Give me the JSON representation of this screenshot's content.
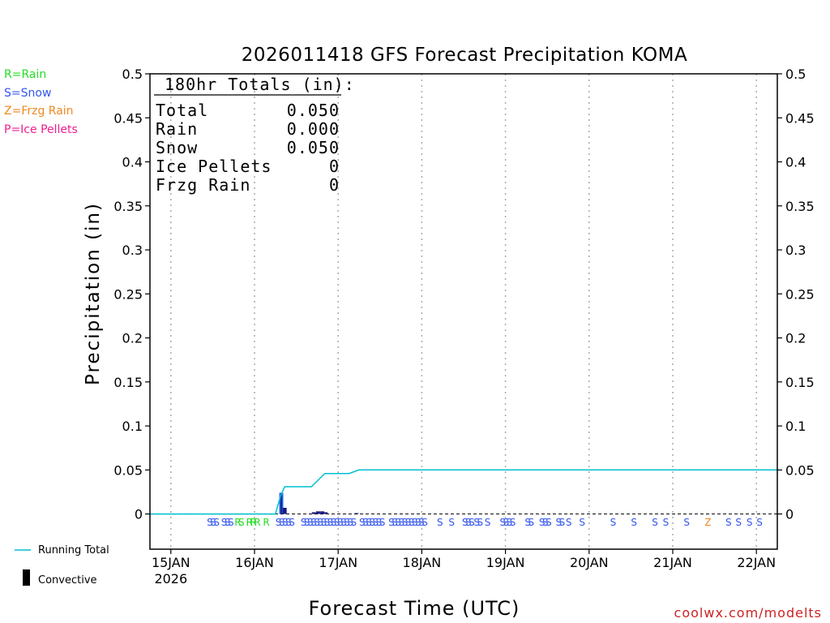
{
  "chart_data": {
    "type": "bar",
    "title": "2026011418 GFS Forecast Precipitation KOMA",
    "xlabel": "Forecast Time (UTC)",
    "ylabel": "Precipitation (in)",
    "ylim": [
      -0.04,
      0.5
    ],
    "y_ticks": [
      "0",
      "0.05",
      "0.1",
      "0.15",
      "0.2",
      "0.25",
      "0.3",
      "0.35",
      "0.4",
      "0.45",
      "0.5"
    ],
    "y_tick_values": [
      0,
      0.05,
      0.1,
      0.15,
      0.2,
      0.25,
      0.3,
      0.35,
      0.4,
      0.45,
      0.5
    ],
    "x_range_days": [
      -0.25,
      7.25
    ],
    "x_ticks": [
      {
        "day": 0,
        "label": "15JAN",
        "sub": "2026"
      },
      {
        "day": 1,
        "label": "16JAN",
        "sub": ""
      },
      {
        "day": 2,
        "label": "17JAN",
        "sub": ""
      },
      {
        "day": 3,
        "label": "18JAN",
        "sub": ""
      },
      {
        "day": 4,
        "label": "19JAN",
        "sub": ""
      },
      {
        "day": 5,
        "label": "20JAN",
        "sub": ""
      },
      {
        "day": 6,
        "label": "21JAN",
        "sub": ""
      },
      {
        "day": 7,
        "label": "22JAN",
        "sub": ""
      }
    ],
    "precip_bars": [
      {
        "day": 1.32,
        "value": 0.024,
        "kind": "snow"
      },
      {
        "day": 1.36,
        "value": 0.007,
        "kind": "snow"
      },
      {
        "day": 1.71,
        "value": 0.002,
        "kind": "snow"
      },
      {
        "day": 1.76,
        "value": 0.003,
        "kind": "snow"
      },
      {
        "day": 1.81,
        "value": 0.003,
        "kind": "snow"
      },
      {
        "day": 1.85,
        "value": 0.002,
        "kind": "snow"
      },
      {
        "day": 2.22,
        "value": 0.001,
        "kind": "snow"
      }
    ],
    "series": [
      {
        "name": "Running Total",
        "color": "#00c0d0",
        "x": [
          -0.25,
          1.25,
          1.31,
          1.36,
          1.68,
          1.84,
          2.13,
          2.25,
          7.25
        ],
        "y": [
          0,
          0,
          0.02,
          0.031,
          0.031,
          0.046,
          0.046,
          0.05,
          0.05
        ]
      }
    ],
    "ptype_markers": [
      {
        "day": 0.43,
        "text": "SSS",
        "kind": "snow"
      },
      {
        "day": 0.6,
        "text": "SSS",
        "kind": "snow"
      },
      {
        "day": 0.76,
        "text": "RS",
        "kind": "rain"
      },
      {
        "day": 0.9,
        "text": "RRR",
        "kind": "rain"
      },
      {
        "day": 1.1,
        "text": "R",
        "kind": "rain"
      },
      {
        "day": 1.25,
        "text": "SSSSS",
        "kind": "snow"
      },
      {
        "day": 1.55,
        "text": "SSSSSSSSSSSSSSSS",
        "kind": "snow"
      },
      {
        "day": 2.25,
        "text": "SSSSSSS",
        "kind": "snow"
      },
      {
        "day": 2.6,
        "text": "SSSSSSSSSSS",
        "kind": "snow"
      },
      {
        "day": 3.18,
        "text": "S",
        "kind": "snow"
      },
      {
        "day": 3.32,
        "text": "S",
        "kind": "snow"
      },
      {
        "day": 3.48,
        "text": "SSS",
        "kind": "snow"
      },
      {
        "day": 3.62,
        "text": "SS",
        "kind": "snow"
      },
      {
        "day": 3.75,
        "text": "S",
        "kind": "snow"
      },
      {
        "day": 3.93,
        "text": "SSSS",
        "kind": "snow"
      },
      {
        "day": 4.23,
        "text": "SS",
        "kind": "snow"
      },
      {
        "day": 4.4,
        "text": "SSS",
        "kind": "snow"
      },
      {
        "day": 4.6,
        "text": "SS",
        "kind": "snow"
      },
      {
        "day": 4.72,
        "text": "S",
        "kind": "snow"
      },
      {
        "day": 4.88,
        "text": "S",
        "kind": "snow"
      },
      {
        "day": 5.25,
        "text": "S",
        "kind": "snow"
      },
      {
        "day": 5.5,
        "text": "S",
        "kind": "snow"
      },
      {
        "day": 5.75,
        "text": "S",
        "kind": "snow"
      },
      {
        "day": 5.88,
        "text": "S",
        "kind": "snow"
      },
      {
        "day": 6.13,
        "text": "S",
        "kind": "snow"
      },
      {
        "day": 6.38,
        "text": "Z",
        "kind": "frzg"
      },
      {
        "day": 6.63,
        "text": "S",
        "kind": "snow"
      },
      {
        "day": 6.75,
        "text": "S",
        "kind": "snow"
      },
      {
        "day": 6.88,
        "text": "S",
        "kind": "snow"
      },
      {
        "day": 7.0,
        "text": "S",
        "kind": "snow"
      }
    ],
    "colors": {
      "rain": "#22dd22",
      "snow": "#3355ee",
      "frzg": "#ee8822",
      "ice": "#ee1e90",
      "bar": "#1a1a80",
      "bar_tall": "#2266ee",
      "running_total": "#00c0d0",
      "grid": "#aaaaaa"
    }
  },
  "key_legend": {
    "rain": "R=Rain",
    "snow": "S=Snow",
    "frzg": "Z=Frzg Rain",
    "ice": "P=Ice Pellets"
  },
  "bottom_legend": {
    "running_total": "Running Total",
    "convective": "Convective"
  },
  "totals_box": {
    "header": "180hr Totals (in):",
    "rows": [
      {
        "label": "Total",
        "value": "0.050"
      },
      {
        "label": "Rain",
        "value": "0.000"
      },
      {
        "label": "Snow",
        "value": "0.050"
      },
      {
        "label": "Ice Pellets",
        "value": "0"
      },
      {
        "label": "Frzg Rain",
        "value": "0"
      }
    ]
  },
  "credit": "coolwx.com/modelts"
}
